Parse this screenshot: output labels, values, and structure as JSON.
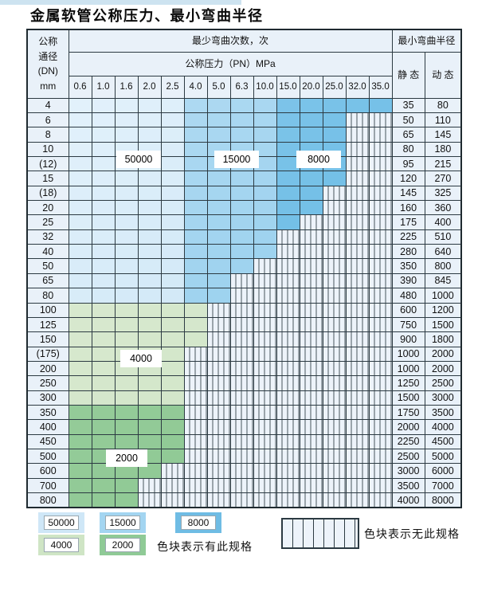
{
  "page": {
    "title": "金属软管公称压力、最小弯曲半径"
  },
  "table": {
    "dn_header": [
      "公称",
      "通径",
      "(DN)",
      "mm"
    ],
    "bend_header": "最少弯曲次数，次",
    "pressure_header": "公称压力（PN）MPa",
    "radius_header": "最小弯曲半径",
    "static_header": "静 态",
    "dynamic_header": "动 态",
    "pressure_cols": [
      "0.6",
      "1.0",
      "1.6",
      "2.0",
      "2.5",
      "4.0",
      "5.0",
      "6.3",
      "10.0",
      "15.0",
      "20.0",
      "25.0",
      "32.0",
      "35.0"
    ],
    "rows": [
      {
        "dn": "4",
        "static": "35",
        "dynamic": "80",
        "max_col": 14,
        "group": "blue"
      },
      {
        "dn": "6",
        "static": "50",
        "dynamic": "110",
        "max_col": 12,
        "group": "blue"
      },
      {
        "dn": "8",
        "static": "65",
        "dynamic": "145",
        "max_col": 12,
        "group": "blue"
      },
      {
        "dn": "10",
        "static": "80",
        "dynamic": "180",
        "max_col": 12,
        "group": "blue"
      },
      {
        "dn": "(12)",
        "static": "95",
        "dynamic": "215",
        "max_col": 12,
        "group": "blue"
      },
      {
        "dn": "15",
        "static": "120",
        "dynamic": "270",
        "max_col": 12,
        "group": "blue"
      },
      {
        "dn": "(18)",
        "static": "145",
        "dynamic": "325",
        "max_col": 11,
        "group": "blue"
      },
      {
        "dn": "20",
        "static": "160",
        "dynamic": "360",
        "max_col": 11,
        "group": "blue"
      },
      {
        "dn": "25",
        "static": "175",
        "dynamic": "400",
        "max_col": 10,
        "group": "blue"
      },
      {
        "dn": "32",
        "static": "225",
        "dynamic": "510",
        "max_col": 9,
        "group": "blue"
      },
      {
        "dn": "40",
        "static": "280",
        "dynamic": "640",
        "max_col": 9,
        "group": "blue"
      },
      {
        "dn": "50",
        "static": "350",
        "dynamic": "800",
        "max_col": 8,
        "group": "blue"
      },
      {
        "dn": "65",
        "static": "390",
        "dynamic": "845",
        "max_col": 7,
        "group": "blue"
      },
      {
        "dn": "80",
        "static": "480",
        "dynamic": "1000",
        "max_col": 7,
        "group": "blue"
      },
      {
        "dn": "100",
        "static": "600",
        "dynamic": "1200",
        "max_col": 6,
        "group": "g4000"
      },
      {
        "dn": "125",
        "static": "750",
        "dynamic": "1500",
        "max_col": 6,
        "group": "g4000"
      },
      {
        "dn": "150",
        "static": "900",
        "dynamic": "1800",
        "max_col": 6,
        "group": "g4000"
      },
      {
        "dn": "(175)",
        "static": "1000",
        "dynamic": "2000",
        "max_col": 5,
        "group": "g4000"
      },
      {
        "dn": "200",
        "static": "1000",
        "dynamic": "2000",
        "max_col": 5,
        "group": "g4000"
      },
      {
        "dn": "250",
        "static": "1250",
        "dynamic": "2500",
        "max_col": 5,
        "group": "g4000"
      },
      {
        "dn": "300",
        "static": "1500",
        "dynamic": "3000",
        "max_col": 5,
        "group": "g4000"
      },
      {
        "dn": "350",
        "static": "1750",
        "dynamic": "3500",
        "max_col": 5,
        "group": "g2000"
      },
      {
        "dn": "400",
        "static": "2000",
        "dynamic": "4000",
        "max_col": 5,
        "group": "g2000"
      },
      {
        "dn": "450",
        "static": "2250",
        "dynamic": "4500",
        "max_col": 5,
        "group": "g2000"
      },
      {
        "dn": "500",
        "static": "2500",
        "dynamic": "5000",
        "max_col": 5,
        "group": "g2000"
      },
      {
        "dn": "600",
        "static": "3000",
        "dynamic": "6000",
        "max_col": 4,
        "group": "g2000"
      },
      {
        "dn": "700",
        "static": "3500",
        "dynamic": "7000",
        "max_col": 3,
        "group": "g2000"
      },
      {
        "dn": "800",
        "static": "4000",
        "dynamic": "8000",
        "max_col": 3,
        "group": "g2000"
      }
    ],
    "bend_count_bands": {
      "blue": [
        {
          "label": "50000",
          "cols": [
            "0.6",
            "2.5"
          ]
        },
        {
          "label": "15000",
          "cols": [
            "4.0",
            "10.0"
          ]
        },
        {
          "label": "8000",
          "cols": [
            "15.0",
            "35.0"
          ]
        }
      ],
      "green": [
        {
          "label": "4000",
          "dn_range": [
            "100",
            "300"
          ]
        },
        {
          "label": "2000",
          "dn_range": [
            "350",
            "800"
          ]
        }
      ]
    }
  },
  "overlay_labels": [
    {
      "text": "50000"
    },
    {
      "text": "15000"
    },
    {
      "text": "8000"
    },
    {
      "text": "4000"
    },
    {
      "text": "2000"
    }
  ],
  "legend": {
    "items": [
      {
        "label": "50000",
        "key": "c50000"
      },
      {
        "label": "15000",
        "key": "c15000"
      },
      {
        "label": "8000",
        "key": "c8000"
      },
      {
        "label": "4000",
        "key": "c4000"
      },
      {
        "label": "2000",
        "key": "c2000"
      }
    ],
    "available_note": "色块表示有此规格",
    "none_note": "色块表示无此规格"
  },
  "colors": {
    "top_strip": "#cde3f0",
    "cell_bg": "#e9f1f9",
    "hatch_bg": "#edf3fa",
    "hatch_line": "#46545c",
    "grid": "#2c3a42",
    "regions": {
      "c50000": [
        "#e2f1fb",
        "#bedef2"
      ],
      "c15000": [
        "#b4dcf3",
        "#86c8ea"
      ],
      "c8000": [
        "#88c9ec",
        "#5cb5e1"
      ],
      "c4000": [
        "#dcebd3",
        "#cde3c4"
      ],
      "c2000": [
        "#9ccf9f",
        "#8bc791"
      ]
    },
    "legend_swatch": {
      "c50000": "#cfe7f7",
      "c15000": "#a3d5f1",
      "c8000": "#6fbce4",
      "c4000": "#cfe5c5",
      "c2000": "#8fca96"
    }
  }
}
